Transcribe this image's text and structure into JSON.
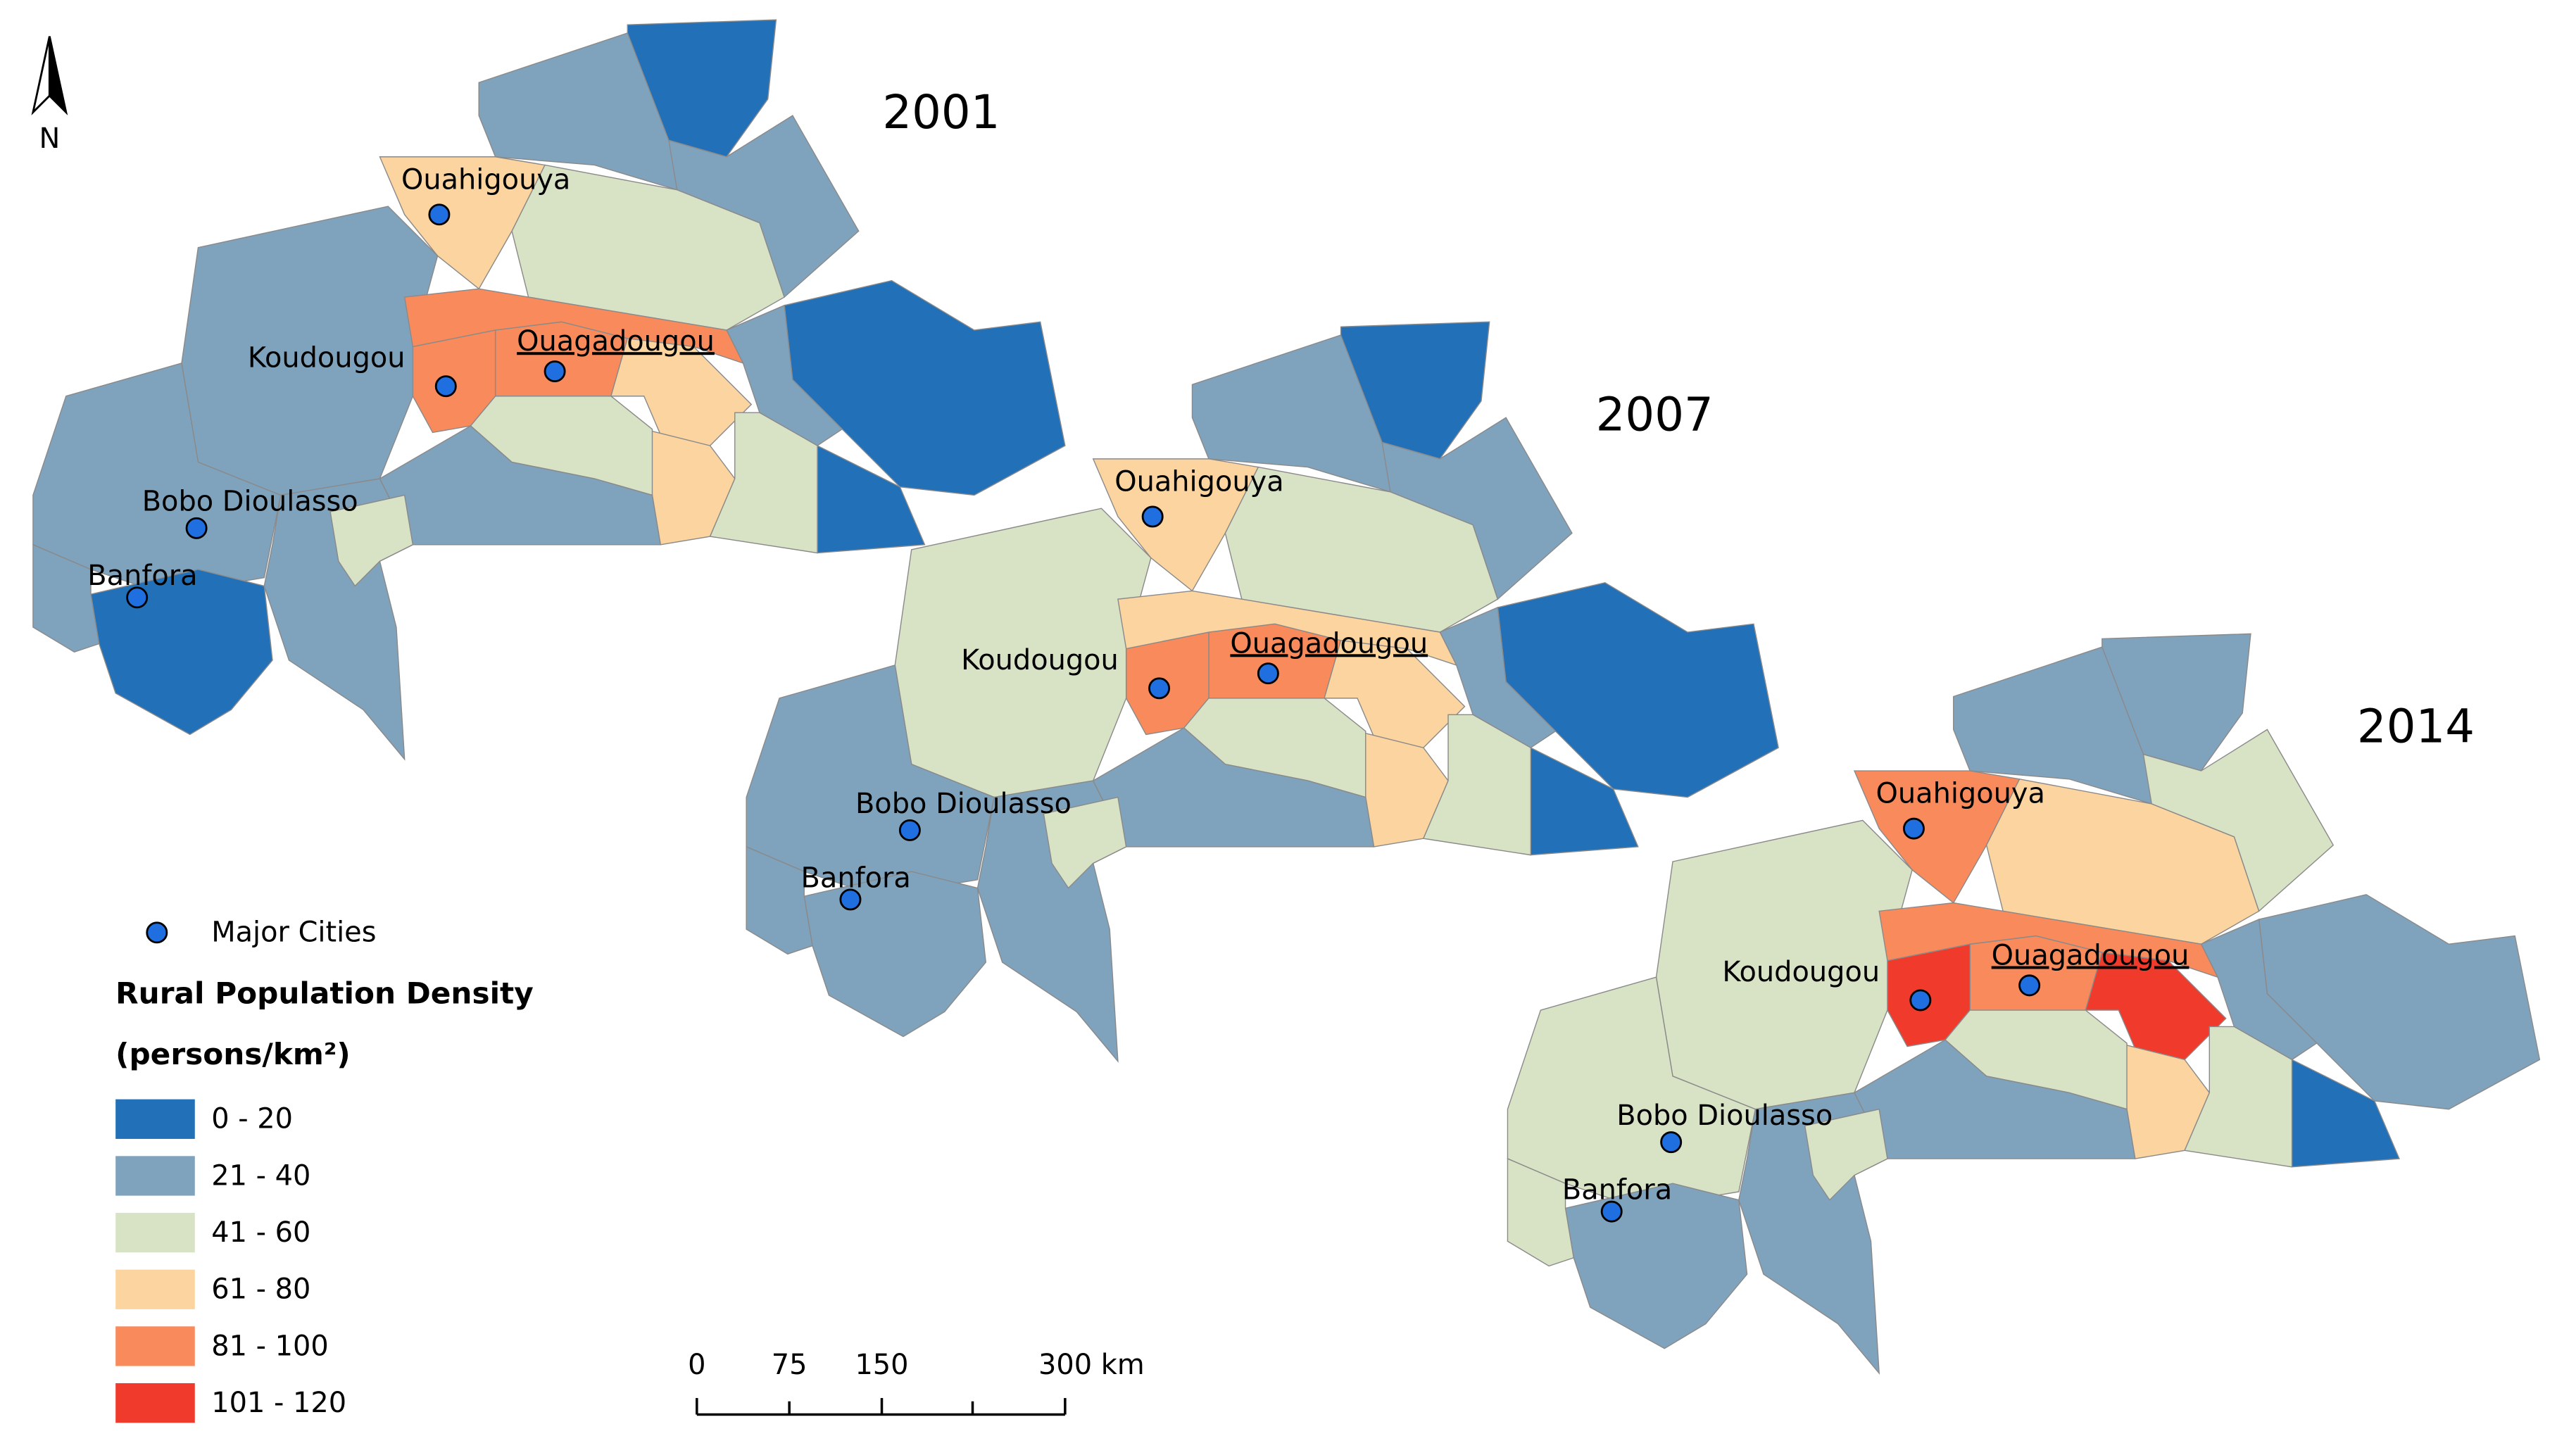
{
  "north_arrow": "N",
  "maps": [
    {
      "year": "2001",
      "cities": [
        {
          "name": "Ouahigouya"
        },
        {
          "name": "Koudougou"
        },
        {
          "name": "Ouagadougou"
        },
        {
          "name": "Bobo Dioulasso"
        },
        {
          "name": "Banfora"
        }
      ]
    },
    {
      "year": "2007",
      "cities": [
        {
          "name": "Ouahigouya"
        },
        {
          "name": "Koudougou"
        },
        {
          "name": "Ouagadougou"
        },
        {
          "name": "Bobo Dioulasso"
        },
        {
          "name": "Banfora"
        }
      ]
    },
    {
      "year": "2014",
      "cities": [
        {
          "name": "Ouahigouya"
        },
        {
          "name": "Koudougou"
        },
        {
          "name": "Ouagadougou"
        },
        {
          "name": "Bobo Dioulasso"
        },
        {
          "name": "Banfora"
        }
      ]
    }
  ],
  "legend": {
    "cities": "Major Cities",
    "title": "Rural Population Density",
    "units": "(persons/km²)",
    "classes": [
      {
        "label": "0 - 20",
        "color": "#2270b8"
      },
      {
        "label": "21 - 40",
        "color": "#7fa2bd"
      },
      {
        "label": "41 - 60",
        "color": "#d8e2c5"
      },
      {
        "label": "61 - 80",
        "color": "#fbd49f"
      },
      {
        "label": "81 - 100",
        "color": "#f88a5c"
      },
      {
        "label": "101 - 120",
        "color": "#ef3a2c"
      }
    ]
  },
  "scale_bar": {
    "labels": [
      "0",
      "75",
      "150",
      "300 km"
    ]
  }
}
